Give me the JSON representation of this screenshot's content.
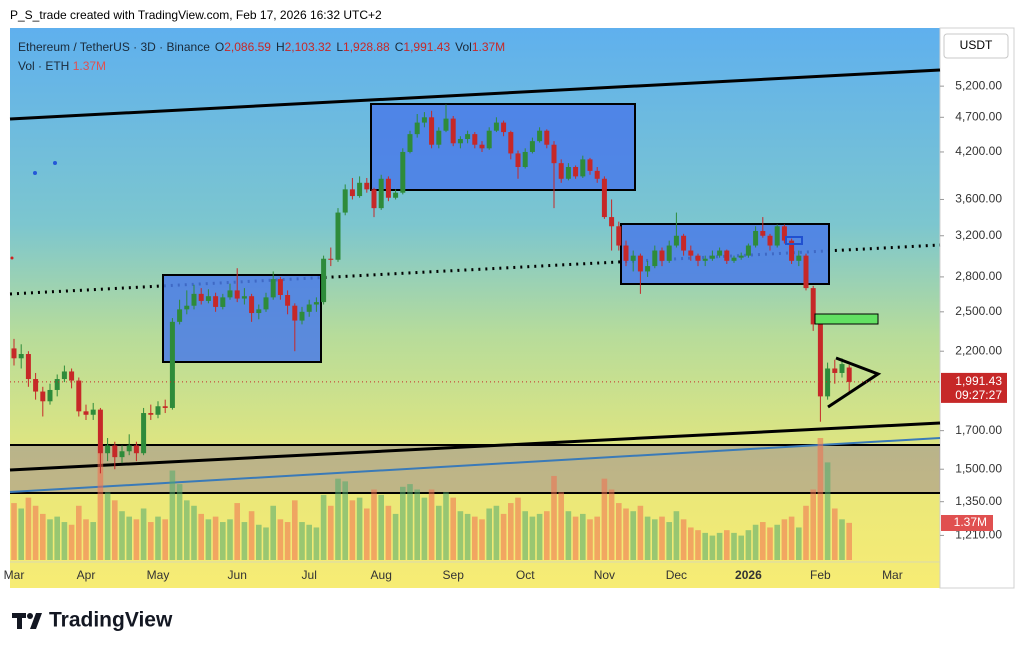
{
  "chart_data": {
    "type": "candlestick",
    "watermark": "P_S_trade created with TradingView.com, Feb 17, 2026 16:32 UTC+2",
    "legend": {
      "symbol": "Ethereum / TetherUS · 3D · Binance",
      "fields": [
        {
          "key": "O",
          "value": "2,086.59"
        },
        {
          "key": "H",
          "value": "2,103.32"
        },
        {
          "key": "L",
          "value": "1,928.88"
        },
        {
          "key": "C",
          "value": "1,991.43"
        },
        {
          "key": "Vol",
          "value": "1.37M"
        }
      ],
      "volume_title": "Vol · ETH",
      "volume_value": "1.37M"
    },
    "currency": "USDT",
    "price_label": "1,991.43",
    "countdown": "09:27:27",
    "volume_label": "1.37M",
    "brand": "TradingView",
    "log_scale": true,
    "grid": false,
    "up_color": "#2e8b3a",
    "down_color": "#c62828",
    "ylim": [
      1110,
      6280
    ],
    "yticks": [
      {
        "value": 5200,
        "label": "5,200.00"
      },
      {
        "value": 4700,
        "label": "4,700.00"
      },
      {
        "value": 4200,
        "label": "4,200.00"
      },
      {
        "value": 3600,
        "label": "3,600.00"
      },
      {
        "value": 3200,
        "label": "3,200.00"
      },
      {
        "value": 2800,
        "label": "2,800.00"
      },
      {
        "value": 2500,
        "label": "2,500.00"
      },
      {
        "value": 2200,
        "label": "2,200.00"
      },
      {
        "value": 1700,
        "label": "1,700.00"
      },
      {
        "value": 1500,
        "label": "1,500.00"
      },
      {
        "value": 1350,
        "label": "1,350.00"
      },
      {
        "value": 1210,
        "label": "1,210.00"
      }
    ],
    "categories": [
      "Mar",
      null,
      null,
      null,
      null,
      null,
      null,
      null,
      null,
      null,
      "Apr",
      null,
      null,
      null,
      null,
      null,
      null,
      null,
      null,
      null,
      "May",
      null,
      null,
      null,
      null,
      null,
      null,
      null,
      null,
      null,
      null,
      "Jun",
      null,
      null,
      null,
      null,
      null,
      null,
      null,
      null,
      null,
      "Jul",
      null,
      null,
      null,
      null,
      null,
      null,
      null,
      null,
      null,
      "Aug",
      null,
      null,
      null,
      null,
      null,
      null,
      null,
      null,
      null,
      "Sep",
      null,
      null,
      null,
      null,
      null,
      null,
      null,
      null,
      null,
      "Oct",
      null,
      null,
      null,
      null,
      null,
      null,
      null,
      null,
      null,
      null,
      "Nov",
      null,
      null,
      null,
      null,
      null,
      null,
      null,
      null,
      null,
      "Dec",
      null,
      null,
      null,
      null,
      null,
      null,
      null,
      null,
      null,
      "2026",
      null,
      null,
      null,
      null,
      null,
      null,
      null,
      null,
      null,
      "Feb",
      null,
      null,
      null,
      null,
      null,
      null,
      null,
      null,
      null,
      "Mar"
    ],
    "open": [
      2220,
      2150,
      2180,
      2010,
      1930,
      1870,
      1940,
      2010,
      2060,
      2000,
      1810,
      1790,
      1820,
      1580,
      1620,
      1560,
      1590,
      1620,
      1580,
      1800,
      1790,
      1840,
      1830,
      2420,
      2520,
      2550,
      2650,
      2590,
      2630,
      2540,
      2620,
      2680,
      2610,
      2630,
      2490,
      2520,
      2620,
      2780,
      2640,
      2550,
      2430,
      2500,
      2560,
      2580,
      2970,
      2960,
      3450,
      3720,
      3640,
      3800,
      3720,
      3500,
      3850,
      3620,
      3680,
      4200,
      4450,
      4620,
      4700,
      4300,
      4500,
      4680,
      4320,
      4380,
      4450,
      4300,
      4250,
      4500,
      4620,
      4480,
      4180,
      4000,
      4200,
      4350,
      4500,
      4300,
      4050,
      3850,
      4000,
      3880,
      4100,
      3950,
      3850,
      3400,
      3300,
      3100,
      2950,
      3000,
      2850,
      2900,
      3050,
      2950,
      3100,
      3200,
      3050,
      3000,
      2950,
      2970,
      3000,
      3050,
      2950,
      2980,
      3000,
      3100,
      3250,
      3200,
      3100,
      3300,
      3150,
      2950,
      3000,
      2700,
      2400,
      1900,
      2080,
      2050,
      2086.59,
      null,
      null,
      null,
      null,
      null,
      null
    ],
    "high": [
      2290,
      2250,
      2200,
      2050,
      1960,
      1980,
      2040,
      2100,
      2080,
      2020,
      1850,
      1860,
      1830,
      1660,
      1640,
      1620,
      1680,
      1640,
      1830,
      1850,
      1870,
      1880,
      2450,
      2600,
      2680,
      2730,
      2700,
      2690,
      2660,
      2650,
      2740,
      2880,
      2700,
      2650,
      2560,
      2660,
      2850,
      2800,
      2680,
      2570,
      2540,
      2600,
      2620,
      3000,
      3080,
      3500,
      3780,
      3860,
      3880,
      3860,
      3740,
      3900,
      3880,
      3720,
      4250,
      4500,
      4750,
      4780,
      4800,
      4550,
      4900,
      4720,
      4420,
      4500,
      4480,
      4350,
      4550,
      4700,
      4650,
      4500,
      4220,
      4250,
      4400,
      4550,
      4520,
      4350,
      4100,
      4050,
      4020,
      4150,
      4120,
      4000,
      3880,
      3600,
      3350,
      3150,
      3050,
      3020,
      2950,
      3100,
      3080,
      3150,
      3450,
      3220,
      3100,
      3020,
      3000,
      3050,
      3080,
      3060,
      3000,
      3030,
      3120,
      3300,
      3400,
      3220,
      3320,
      3320,
      3170,
      3050,
      3020,
      2720,
      2420,
      2120,
      2140,
      2150,
      2103.32,
      null,
      null,
      null,
      null,
      null,
      null
    ],
    "low": [
      2100,
      2080,
      1960,
      1880,
      1780,
      1850,
      1900,
      1990,
      1950,
      1780,
      1760,
      1760,
      1480,
      1540,
      1500,
      1530,
      1570,
      1540,
      1570,
      1760,
      1770,
      1800,
      1820,
      2400,
      2480,
      2520,
      2560,
      2570,
      2500,
      2520,
      2600,
      2580,
      2560,
      2420,
      2440,
      2500,
      2600,
      2600,
      2480,
      2200,
      2400,
      2460,
      2500,
      2560,
      2900,
      2940,
      3420,
      3600,
      3620,
      3680,
      3400,
      3480,
      3580,
      3600,
      3660,
      4180,
      4400,
      4550,
      4250,
      4250,
      4480,
      4280,
      4250,
      4320,
      4250,
      4200,
      4230,
      4480,
      4420,
      4100,
      3850,
      3980,
      4180,
      4330,
      4250,
      3500,
      3800,
      3830,
      3850,
      3860,
      3900,
      3800,
      3380,
      3050,
      3050,
      2900,
      2850,
      2650,
      2800,
      2880,
      2900,
      2930,
      3080,
      3000,
      2950,
      2900,
      2900,
      2950,
      2980,
      2920,
      2930,
      2960,
      2980,
      3080,
      3180,
      3050,
      3080,
      3120,
      2920,
      2900,
      2680,
      2350,
      1750,
      1880,
      1980,
      2020,
      1928.88,
      null,
      null,
      null,
      null,
      null,
      null
    ],
    "close": [
      2150,
      2180,
      2010,
      1930,
      1870,
      1940,
      2010,
      2060,
      2000,
      1810,
      1790,
      1820,
      1580,
      1620,
      1560,
      1590,
      1620,
      1580,
      1800,
      1790,
      1840,
      1830,
      2420,
      2520,
      2550,
      2650,
      2590,
      2630,
      2540,
      2620,
      2680,
      2610,
      2630,
      2490,
      2520,
      2620,
      2780,
      2640,
      2550,
      2430,
      2500,
      2560,
      2580,
      2970,
      2960,
      3450,
      3720,
      3640,
      3800,
      3720,
      3500,
      3850,
      3620,
      3680,
      4200,
      4450,
      4620,
      4700,
      4300,
      4500,
      4680,
      4320,
      4380,
      4450,
      4300,
      4250,
      4500,
      4620,
      4480,
      4180,
      4000,
      4200,
      4350,
      4500,
      4300,
      4050,
      3850,
      4000,
      3880,
      4100,
      3950,
      3850,
      3400,
      3300,
      3100,
      2950,
      3000,
      2850,
      2900,
      3050,
      2950,
      3100,
      3200,
      3050,
      3000,
      2950,
      2970,
      3000,
      3050,
      2950,
      2980,
      3000,
      3100,
      3250,
      3200,
      3100,
      3300,
      3150,
      2950,
      3000,
      2700,
      2400,
      1900,
      2080,
      2050,
      2110,
      1991.43,
      null,
      null,
      null,
      null,
      null,
      null
    ],
    "volume": [
      2100000,
      1900000,
      2300000,
      2000000,
      1700000,
      1500000,
      1600000,
      1400000,
      1300000,
      2000000,
      1500000,
      1400000,
      4200000,
      2500000,
      2200000,
      1800000,
      1600000,
      1500000,
      1900000,
      1400000,
      1600000,
      1500000,
      3300000,
      2800000,
      2200000,
      2000000,
      1700000,
      1500000,
      1600000,
      1400000,
      1500000,
      2100000,
      1400000,
      1800000,
      1300000,
      1200000,
      2000000,
      1500000,
      1400000,
      2200000,
      1400000,
      1300000,
      1200000,
      2400000,
      2000000,
      3000000,
      2900000,
      2200000,
      2300000,
      1900000,
      2600000,
      2400000,
      2000000,
      1700000,
      2700000,
      2800000,
      2600000,
      2300000,
      2600000,
      2000000,
      2500000,
      2300000,
      1800000,
      1700000,
      1600000,
      1500000,
      1900000,
      2000000,
      1700000,
      2100000,
      2300000,
      1800000,
      1600000,
      1700000,
      1800000,
      3100000,
      2500000,
      1800000,
      1600000,
      1700000,
      1500000,
      1600000,
      3000000,
      2600000,
      2100000,
      1900000,
      1800000,
      2000000,
      1600000,
      1500000,
      1600000,
      1400000,
      1800000,
      1500000,
      1200000,
      1100000,
      1000000,
      900000,
      1000000,
      1100000,
      1000000,
      900000,
      1100000,
      1300000,
      1400000,
      1200000,
      1300000,
      1500000,
      1600000,
      1200000,
      2000000,
      2600000,
      4500000,
      3600000,
      1900000,
      1500000,
      1370000,
      null,
      null,
      null,
      null,
      null,
      null
    ]
  }
}
